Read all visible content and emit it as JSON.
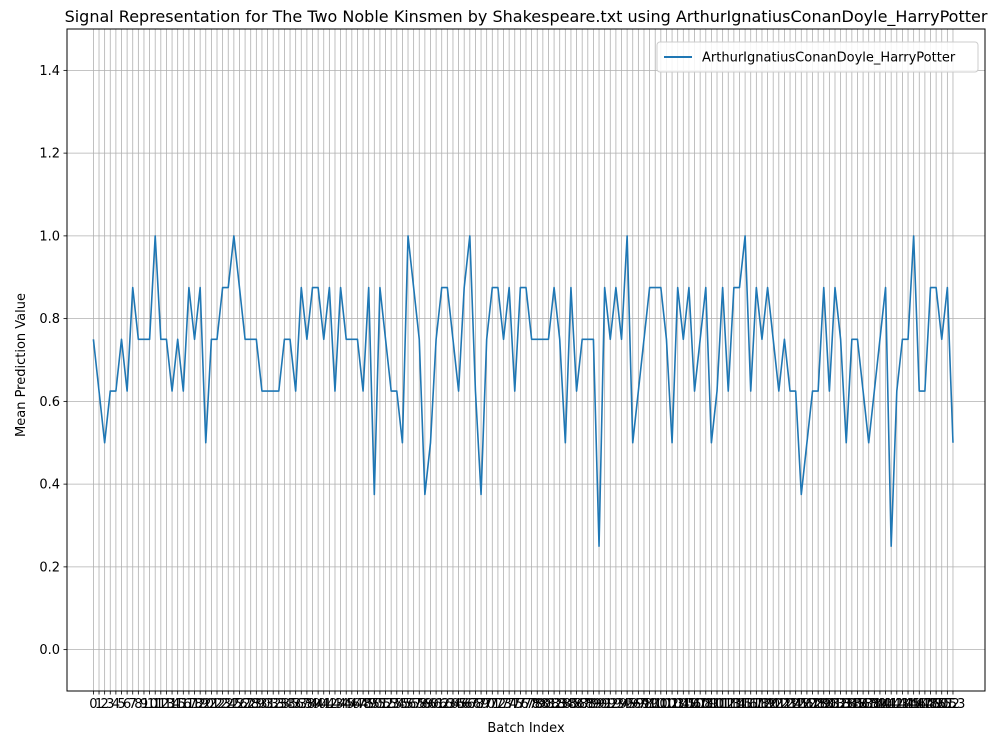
{
  "chart_data": {
    "type": "line",
    "title": "Signal Representation for The Two Noble Kinsmen by Shakespeare.txt using ArthurIgnatiusConanDoyle_HarryPotter",
    "xlabel": "Batch Index",
    "ylabel": "Mean Prediction Value",
    "xlim": [
      -4.7,
      158.7
    ],
    "ylim": [
      -0.1,
      1.5
    ],
    "yticks": [
      0.0,
      0.2,
      0.4,
      0.6,
      0.8,
      1.0,
      1.2,
      1.4
    ],
    "grid": true,
    "legend_position": "top-right",
    "series": [
      {
        "name": "ArthurIgnatiusConanDoyle_HarryPotter",
        "color": "#1f77b4",
        "values": [
          0.75,
          0.625,
          0.5,
          0.625,
          0.625,
          0.75,
          0.625,
          0.875,
          0.75,
          0.75,
          0.75,
          1.0,
          0.75,
          0.75,
          0.625,
          0.75,
          0.625,
          0.875,
          0.75,
          0.875,
          0.5,
          0.75,
          0.75,
          0.875,
          0.875,
          1.0,
          0.875,
          0.75,
          0.75,
          0.75,
          0.625,
          0.625,
          0.625,
          0.625,
          0.75,
          0.75,
          0.625,
          0.875,
          0.75,
          0.875,
          0.875,
          0.75,
          0.875,
          0.625,
          0.875,
          0.75,
          0.75,
          0.75,
          0.625,
          0.875,
          0.375,
          0.875,
          0.75,
          0.625,
          0.625,
          0.5,
          1.0,
          0.875,
          0.75,
          0.375,
          0.5,
          0.75,
          0.875,
          0.875,
          0.75,
          0.625,
          0.875,
          1.0,
          0.625,
          0.375,
          0.75,
          0.875,
          0.875,
          0.75,
          0.875,
          0.625,
          0.875,
          0.875,
          0.75,
          0.75,
          0.75,
          0.75,
          0.875,
          0.75,
          0.5,
          0.875,
          0.625,
          0.75,
          0.75,
          0.75,
          0.25,
          0.875,
          0.75,
          0.875,
          0.75,
          1.0,
          0.5,
          0.625,
          0.75,
          0.875,
          0.875,
          0.875,
          0.75,
          0.5,
          0.875,
          0.75,
          0.875,
          0.625,
          0.75,
          0.875,
          0.5,
          0.625,
          0.875,
          0.625,
          0.875,
          0.875,
          1.0,
          0.625,
          0.875,
          0.75,
          0.875,
          0.75,
          0.625,
          0.75,
          0.625,
          0.625,
          0.375,
          0.5,
          0.625,
          0.625,
          0.875,
          0.625,
          0.875,
          0.75,
          0.5,
          0.75,
          0.75,
          0.625,
          0.5,
          0.625,
          0.75,
          0.875,
          0.25,
          0.625,
          0.75,
          0.75,
          1.0,
          0.625,
          0.625,
          0.875,
          0.875,
          0.75,
          0.875,
          0.5
        ]
      }
    ]
  }
}
